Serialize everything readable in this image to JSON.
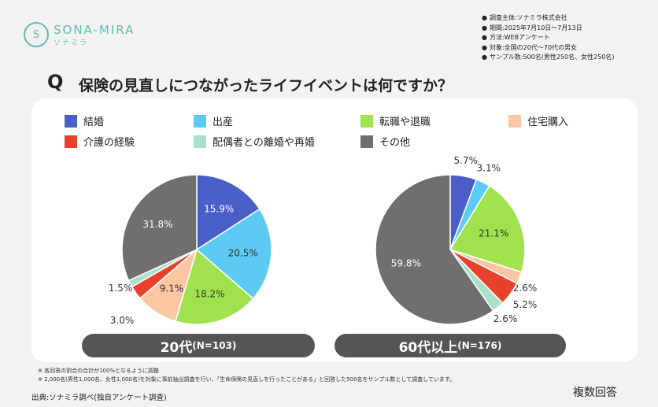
{
  "logo": {
    "name": "SONA-MIRA",
    "kana": "ソナミラ"
  },
  "survey_info": [
    "調査主体:ソナミラ株式会社",
    "期間:2025年7月10日～7月13日",
    "方法:WEBアンケート",
    "対象:全国の20代～70代の男女",
    "サンプル数:500名(男性250名、女性250名)"
  ],
  "question": {
    "mark": "Q",
    "text": "保険の見直しにつながったライフイベントは何ですか？"
  },
  "chart_data": [
    {
      "type": "pie",
      "title": "20代",
      "n_label": "(N=103)",
      "categories": [
        "結婚",
        "出産",
        "転職や退職",
        "住宅購入",
        "介護の経験",
        "配偶者との離婚や再婚",
        "その他"
      ],
      "values": [
        15.9,
        20.5,
        18.2,
        9.1,
        3.0,
        1.5,
        31.8
      ],
      "unit": "%",
      "start": "top",
      "direction": "clockwise"
    },
    {
      "type": "pie",
      "title": "60代以上",
      "n_label": "(N=176)",
      "categories": [
        "結婚",
        "出産",
        "転職や退職",
        "住宅購入",
        "介護の経験",
        "配偶者との離婚や再婚",
        "その他"
      ],
      "values": [
        5.7,
        3.1,
        21.1,
        2.6,
        5.2,
        2.6,
        59.8
      ],
      "unit": "%",
      "start": "top",
      "direction": "clockwise"
    }
  ],
  "legend": [
    {
      "label": "結婚",
      "color": "#4a5ec8"
    },
    {
      "label": "出産",
      "color": "#5ccaf2"
    },
    {
      "label": "転職や退職",
      "color": "#a0e24e"
    },
    {
      "label": "住宅購入",
      "color": "#fcc6a2"
    },
    {
      "label": "介護の経験",
      "color": "#e8412b"
    },
    {
      "label": "配偶者との離婚や再婚",
      "color": "#a8e0c8"
    },
    {
      "label": "その他",
      "color": "#6f6f6f"
    }
  ],
  "notes": [
    "※ 各回答の割合の合計が100%となるように調整",
    "※ 2,000名(男性1,000名、女性1,000名)を対象に事前抽出調査を行い、「生命保険の見直しを行ったことがある」と回答した500名をサンプル数として調査しています。"
  ],
  "source": "出典:ソナミラ調べ(独自アンケート調査)",
  "multi_answer": "複数回答"
}
